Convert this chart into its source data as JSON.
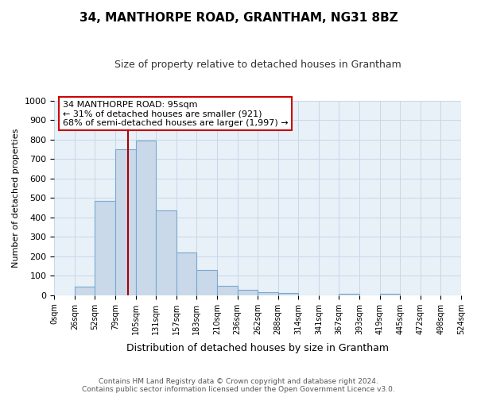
{
  "title": "34, MANTHORPE ROAD, GRANTHAM, NG31 8BZ",
  "subtitle": "Size of property relative to detached houses in Grantham",
  "xlabel": "Distribution of detached houses by size in Grantham",
  "ylabel": "Number of detached properties",
  "footer_line1": "Contains HM Land Registry data © Crown copyright and database right 2024.",
  "footer_line2": "Contains public sector information licensed under the Open Government Licence v3.0.",
  "bin_labels": [
    "0sqm",
    "26sqm",
    "52sqm",
    "79sqm",
    "105sqm",
    "131sqm",
    "157sqm",
    "183sqm",
    "210sqm",
    "236sqm",
    "262sqm",
    "288sqm",
    "314sqm",
    "341sqm",
    "367sqm",
    "393sqm",
    "419sqm",
    "445sqm",
    "472sqm",
    "498sqm",
    "524sqm"
  ],
  "bar_values": [
    0,
    44,
    483,
    750,
    795,
    435,
    220,
    128,
    50,
    28,
    14,
    10,
    0,
    0,
    8,
    0,
    8,
    0,
    0,
    0
  ],
  "bar_color": "#c9d9ea",
  "bar_edge_color": "#7aa8cc",
  "annotation_text": "34 MANTHORPE ROAD: 95sqm\n← 31% of detached houses are smaller (921)\n68% of semi-detached houses are larger (1,997) →",
  "annotation_box_color": "#ffffff",
  "annotation_box_edge_color": "#cc0000",
  "ylim": [
    0,
    1000
  ],
  "yticks": [
    0,
    100,
    200,
    300,
    400,
    500,
    600,
    700,
    800,
    900,
    1000
  ],
  "grid_color": "#c8d8e8",
  "background_color": "#e8f0f8"
}
